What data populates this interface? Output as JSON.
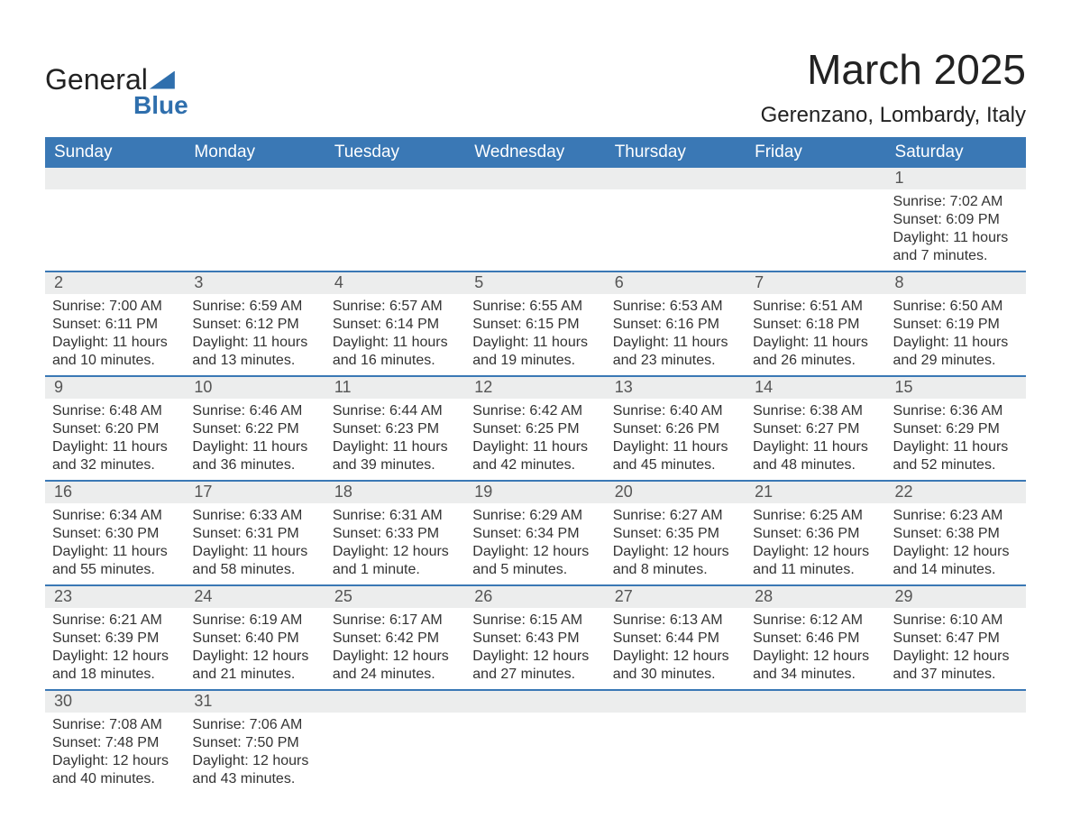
{
  "brand": {
    "word1": "General",
    "word2": "Blue"
  },
  "title": "March 2025",
  "location": "Gerenzano, Lombardy, Italy",
  "colors": {
    "header_bg": "#3a78b5",
    "header_text": "#ffffff",
    "daynum_bg": "#eceded",
    "text": "#333333",
    "brand_accent": "#2f6fad",
    "week_border": "#3a78b5",
    "page_bg": "#ffffff"
  },
  "day_labels": [
    "Sunday",
    "Monday",
    "Tuesday",
    "Wednesday",
    "Thursday",
    "Friday",
    "Saturday"
  ],
  "weeks": [
    [
      {
        "blank": true
      },
      {
        "blank": true
      },
      {
        "blank": true
      },
      {
        "blank": true
      },
      {
        "blank": true
      },
      {
        "blank": true
      },
      {
        "n": "1",
        "sunrise": "Sunrise: 7:02 AM",
        "sunset": "Sunset: 6:09 PM",
        "day1": "Daylight: 11 hours",
        "day2": "and 7 minutes."
      }
    ],
    [
      {
        "n": "2",
        "sunrise": "Sunrise: 7:00 AM",
        "sunset": "Sunset: 6:11 PM",
        "day1": "Daylight: 11 hours",
        "day2": "and 10 minutes."
      },
      {
        "n": "3",
        "sunrise": "Sunrise: 6:59 AM",
        "sunset": "Sunset: 6:12 PM",
        "day1": "Daylight: 11 hours",
        "day2": "and 13 minutes."
      },
      {
        "n": "4",
        "sunrise": "Sunrise: 6:57 AM",
        "sunset": "Sunset: 6:14 PM",
        "day1": "Daylight: 11 hours",
        "day2": "and 16 minutes."
      },
      {
        "n": "5",
        "sunrise": "Sunrise: 6:55 AM",
        "sunset": "Sunset: 6:15 PM",
        "day1": "Daylight: 11 hours",
        "day2": "and 19 minutes."
      },
      {
        "n": "6",
        "sunrise": "Sunrise: 6:53 AM",
        "sunset": "Sunset: 6:16 PM",
        "day1": "Daylight: 11 hours",
        "day2": "and 23 minutes."
      },
      {
        "n": "7",
        "sunrise": "Sunrise: 6:51 AM",
        "sunset": "Sunset: 6:18 PM",
        "day1": "Daylight: 11 hours",
        "day2": "and 26 minutes."
      },
      {
        "n": "8",
        "sunrise": "Sunrise: 6:50 AM",
        "sunset": "Sunset: 6:19 PM",
        "day1": "Daylight: 11 hours",
        "day2": "and 29 minutes."
      }
    ],
    [
      {
        "n": "9",
        "sunrise": "Sunrise: 6:48 AM",
        "sunset": "Sunset: 6:20 PM",
        "day1": "Daylight: 11 hours",
        "day2": "and 32 minutes."
      },
      {
        "n": "10",
        "sunrise": "Sunrise: 6:46 AM",
        "sunset": "Sunset: 6:22 PM",
        "day1": "Daylight: 11 hours",
        "day2": "and 36 minutes."
      },
      {
        "n": "11",
        "sunrise": "Sunrise: 6:44 AM",
        "sunset": "Sunset: 6:23 PM",
        "day1": "Daylight: 11 hours",
        "day2": "and 39 minutes."
      },
      {
        "n": "12",
        "sunrise": "Sunrise: 6:42 AM",
        "sunset": "Sunset: 6:25 PM",
        "day1": "Daylight: 11 hours",
        "day2": "and 42 minutes."
      },
      {
        "n": "13",
        "sunrise": "Sunrise: 6:40 AM",
        "sunset": "Sunset: 6:26 PM",
        "day1": "Daylight: 11 hours",
        "day2": "and 45 minutes."
      },
      {
        "n": "14",
        "sunrise": "Sunrise: 6:38 AM",
        "sunset": "Sunset: 6:27 PM",
        "day1": "Daylight: 11 hours",
        "day2": "and 48 minutes."
      },
      {
        "n": "15",
        "sunrise": "Sunrise: 6:36 AM",
        "sunset": "Sunset: 6:29 PM",
        "day1": "Daylight: 11 hours",
        "day2": "and 52 minutes."
      }
    ],
    [
      {
        "n": "16",
        "sunrise": "Sunrise: 6:34 AM",
        "sunset": "Sunset: 6:30 PM",
        "day1": "Daylight: 11 hours",
        "day2": "and 55 minutes."
      },
      {
        "n": "17",
        "sunrise": "Sunrise: 6:33 AM",
        "sunset": "Sunset: 6:31 PM",
        "day1": "Daylight: 11 hours",
        "day2": "and 58 minutes."
      },
      {
        "n": "18",
        "sunrise": "Sunrise: 6:31 AM",
        "sunset": "Sunset: 6:33 PM",
        "day1": "Daylight: 12 hours",
        "day2": "and 1 minute."
      },
      {
        "n": "19",
        "sunrise": "Sunrise: 6:29 AM",
        "sunset": "Sunset: 6:34 PM",
        "day1": "Daylight: 12 hours",
        "day2": "and 5 minutes."
      },
      {
        "n": "20",
        "sunrise": "Sunrise: 6:27 AM",
        "sunset": "Sunset: 6:35 PM",
        "day1": "Daylight: 12 hours",
        "day2": "and 8 minutes."
      },
      {
        "n": "21",
        "sunrise": "Sunrise: 6:25 AM",
        "sunset": "Sunset: 6:36 PM",
        "day1": "Daylight: 12 hours",
        "day2": "and 11 minutes."
      },
      {
        "n": "22",
        "sunrise": "Sunrise: 6:23 AM",
        "sunset": "Sunset: 6:38 PM",
        "day1": "Daylight: 12 hours",
        "day2": "and 14 minutes."
      }
    ],
    [
      {
        "n": "23",
        "sunrise": "Sunrise: 6:21 AM",
        "sunset": "Sunset: 6:39 PM",
        "day1": "Daylight: 12 hours",
        "day2": "and 18 minutes."
      },
      {
        "n": "24",
        "sunrise": "Sunrise: 6:19 AM",
        "sunset": "Sunset: 6:40 PM",
        "day1": "Daylight: 12 hours",
        "day2": "and 21 minutes."
      },
      {
        "n": "25",
        "sunrise": "Sunrise: 6:17 AM",
        "sunset": "Sunset: 6:42 PM",
        "day1": "Daylight: 12 hours",
        "day2": "and 24 minutes."
      },
      {
        "n": "26",
        "sunrise": "Sunrise: 6:15 AM",
        "sunset": "Sunset: 6:43 PM",
        "day1": "Daylight: 12 hours",
        "day2": "and 27 minutes."
      },
      {
        "n": "27",
        "sunrise": "Sunrise: 6:13 AM",
        "sunset": "Sunset: 6:44 PM",
        "day1": "Daylight: 12 hours",
        "day2": "and 30 minutes."
      },
      {
        "n": "28",
        "sunrise": "Sunrise: 6:12 AM",
        "sunset": "Sunset: 6:46 PM",
        "day1": "Daylight: 12 hours",
        "day2": "and 34 minutes."
      },
      {
        "n": "29",
        "sunrise": "Sunrise: 6:10 AM",
        "sunset": "Sunset: 6:47 PM",
        "day1": "Daylight: 12 hours",
        "day2": "and 37 minutes."
      }
    ],
    [
      {
        "n": "30",
        "sunrise": "Sunrise: 7:08 AM",
        "sunset": "Sunset: 7:48 PM",
        "day1": "Daylight: 12 hours",
        "day2": "and 40 minutes."
      },
      {
        "n": "31",
        "sunrise": "Sunrise: 7:06 AM",
        "sunset": "Sunset: 7:50 PM",
        "day1": "Daylight: 12 hours",
        "day2": "and 43 minutes."
      },
      {
        "blank": true
      },
      {
        "blank": true
      },
      {
        "blank": true
      },
      {
        "blank": true
      },
      {
        "blank": true
      }
    ]
  ]
}
